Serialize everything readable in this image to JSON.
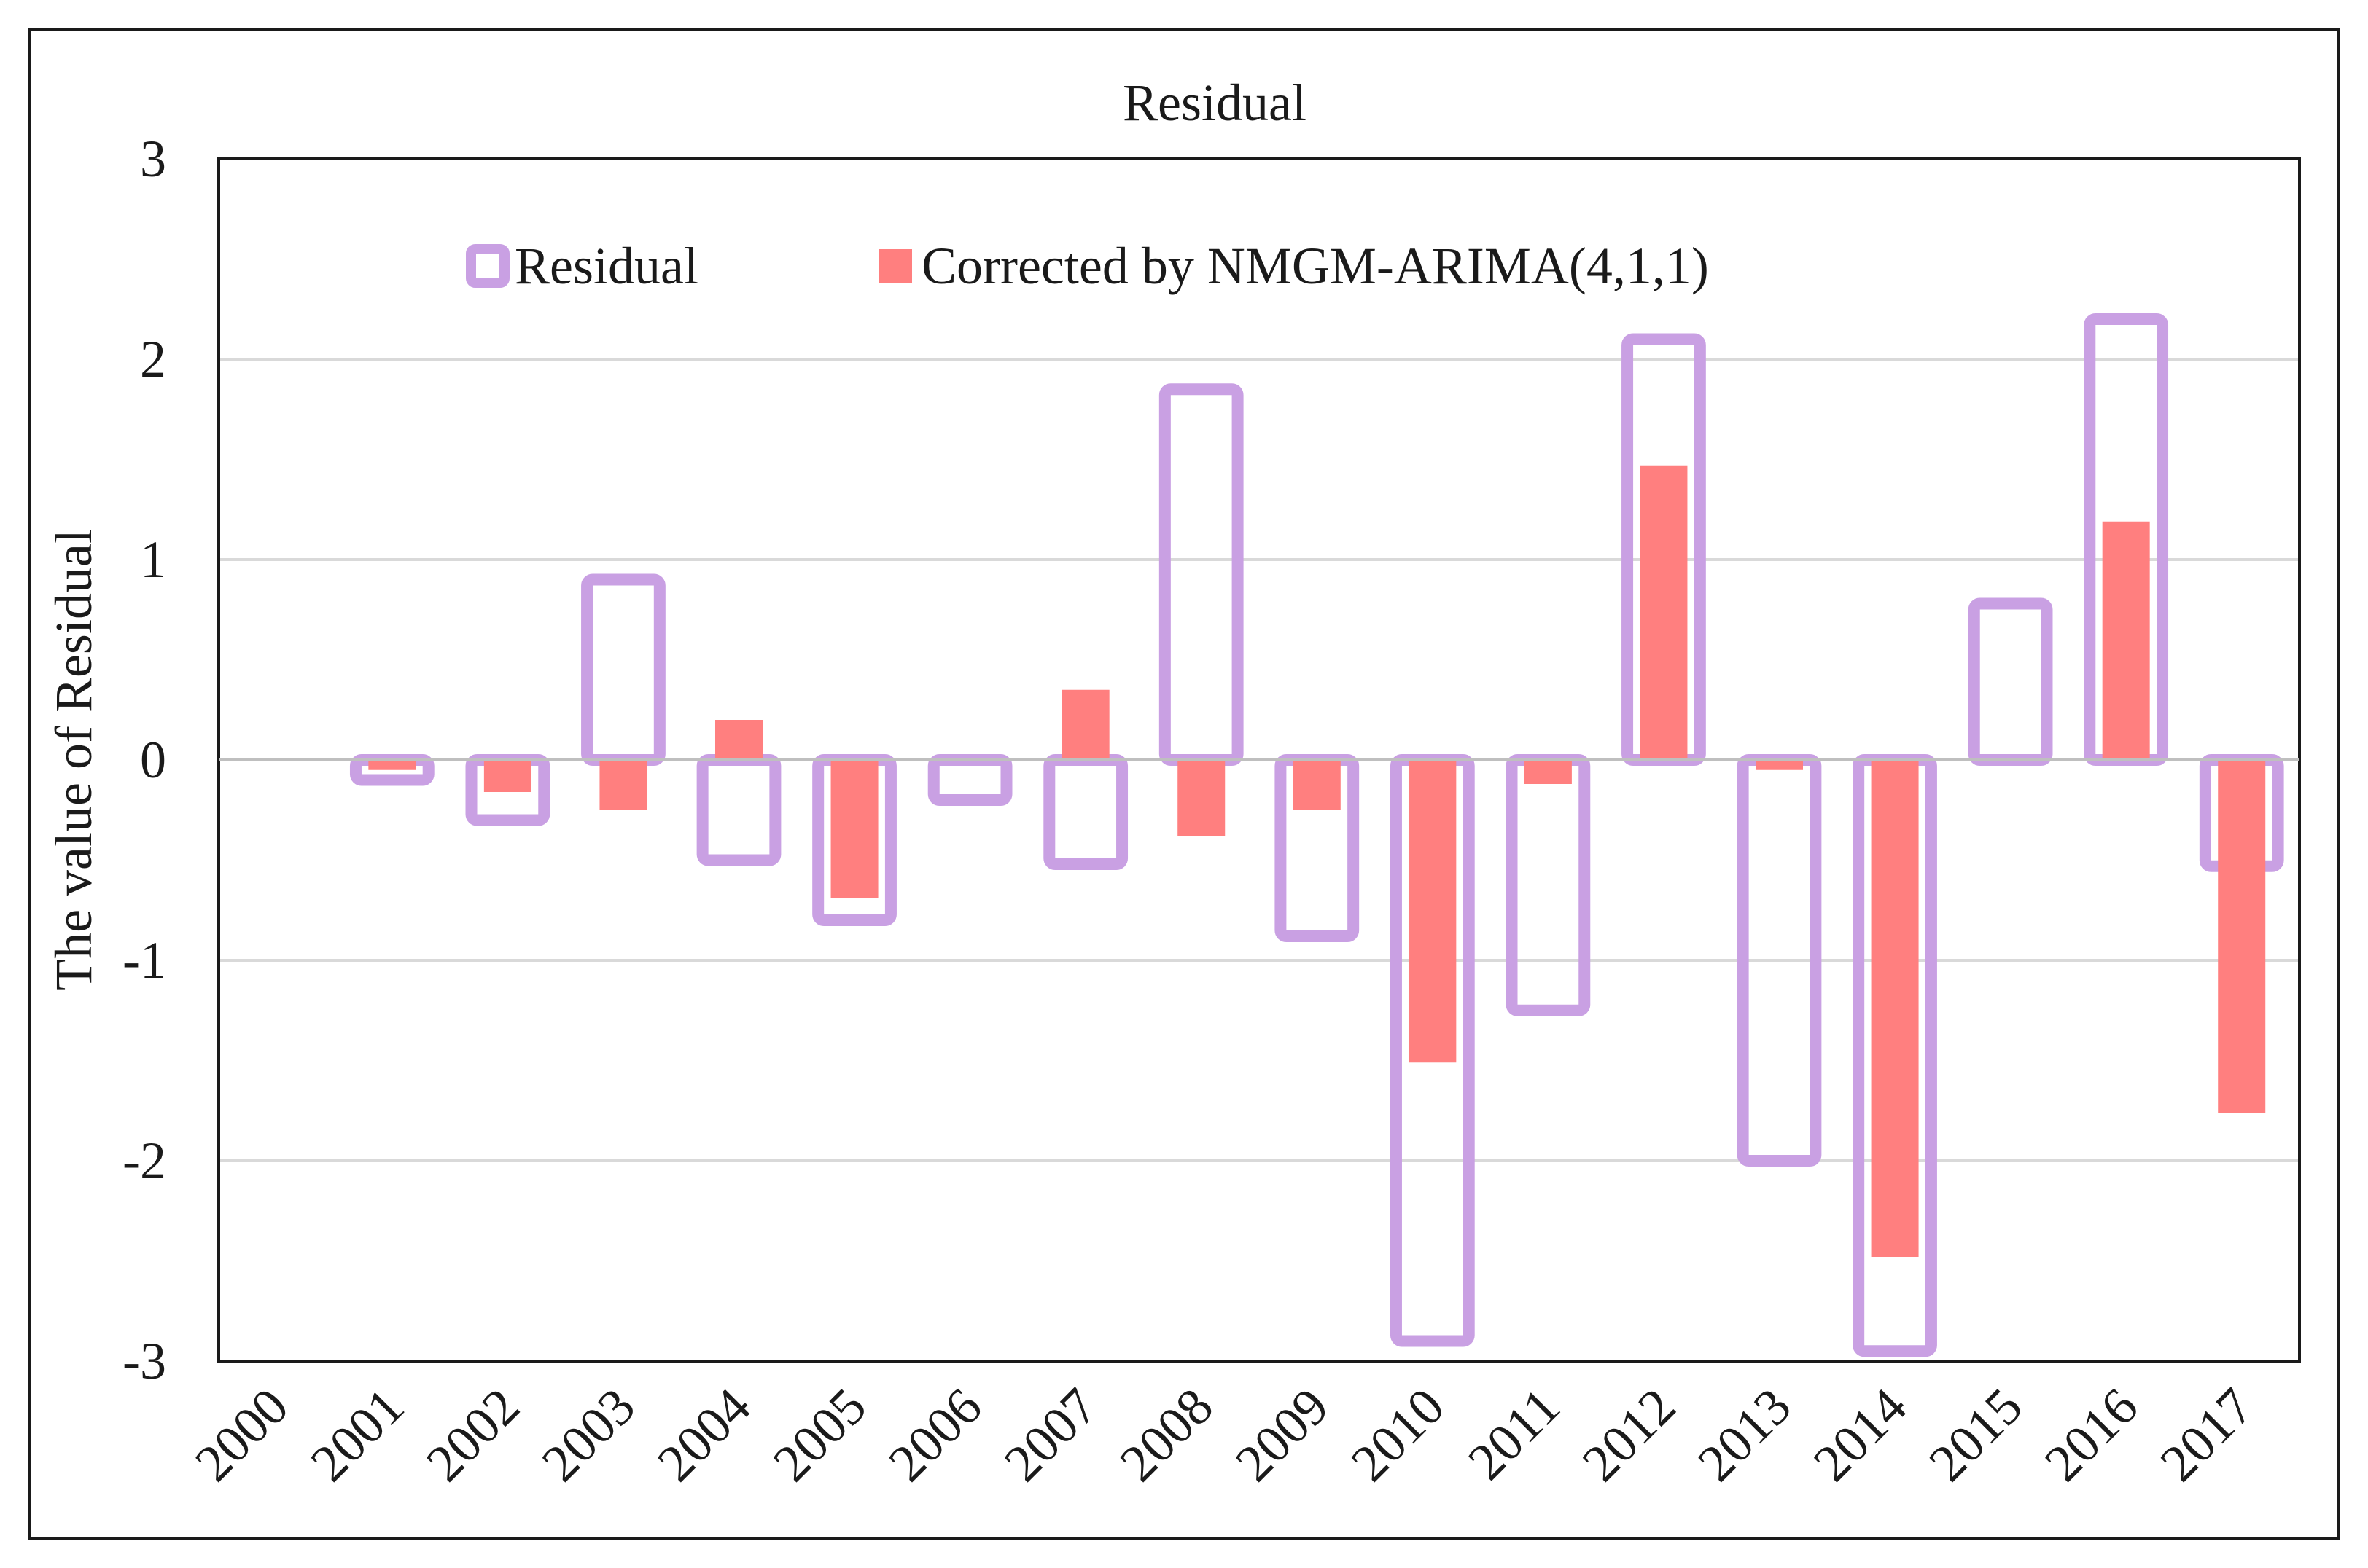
{
  "chart_data": {
    "type": "bar",
    "title": "Residual",
    "xlabel": "",
    "ylabel": "The value of Residual",
    "ylim": [
      -3,
      3
    ],
    "yticks": [
      3,
      2,
      1,
      0,
      -1,
      -2,
      -3
    ],
    "grid": true,
    "legend_position": "top",
    "categories": [
      "2000",
      "2001",
      "2002",
      "2003",
      "2004",
      "2005",
      "2006",
      "2007",
      "2008",
      "2009",
      "2010",
      "2011",
      "2012",
      "2013",
      "2014",
      "2015",
      "2016",
      "2017"
    ],
    "series": [
      {
        "name": "Residual",
        "style": "outline",
        "color": "#c9a0e3",
        "values": [
          null,
          -0.1,
          -0.3,
          0.9,
          -0.5,
          -0.8,
          -0.2,
          -0.52,
          1.85,
          -0.88,
          -2.9,
          -1.25,
          2.1,
          -2.0,
          -2.95,
          0.78,
          2.2,
          -0.53
        ]
      },
      {
        "name": "Corrected by NMGM-ARIMA(4,1,1)",
        "style": "filled",
        "color": "#ff7f7f",
        "values": [
          null,
          -0.05,
          -0.16,
          -0.25,
          0.2,
          -0.69,
          0.0,
          0.35,
          -0.38,
          -0.25,
          -1.51,
          -0.12,
          1.47,
          -0.05,
          -2.48,
          0.0,
          1.19,
          -1.76
        ]
      }
    ]
  }
}
